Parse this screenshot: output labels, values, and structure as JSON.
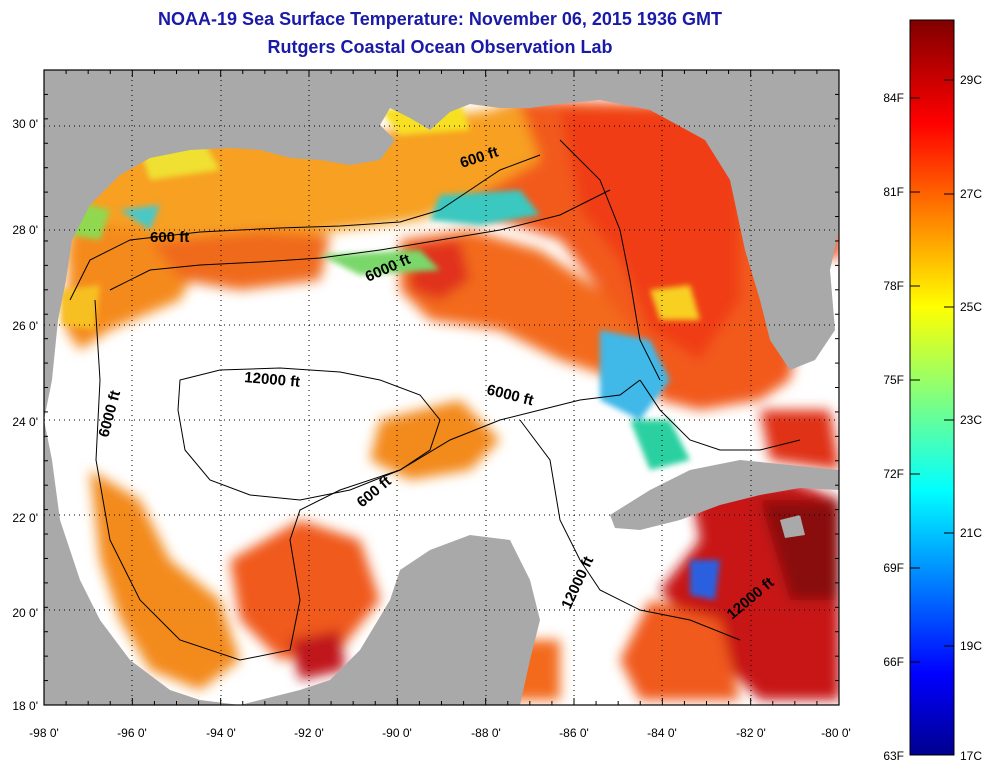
{
  "title": {
    "line1": "NOAA-19 Sea Surface Temperature:  November 06, 2015 1936 GMT",
    "line2": "Rutgers Coastal Ocean Observation Lab"
  },
  "map": {
    "lon_labels": [
      "-98 0'",
      "-96 0'",
      "-94 0'",
      "-92 0'",
      "-90 0'",
      "-88 0'",
      "-86 0'",
      "-84 0'",
      "-82 0'",
      "-80 0'"
    ],
    "lat_labels": [
      "18 0'",
      "20 0'",
      "22 0'",
      "24 0'",
      "26 0'",
      "28 0'",
      "30 0'"
    ],
    "contour_labels": [
      "600 ft",
      "600 ft",
      "6000 ft",
      "6000 ft",
      "12000 ft",
      "6000 ft",
      "600 ft",
      "12000 ft",
      "12000 ft"
    ],
    "colors": {
      "land": "#a9a9a9",
      "no_data": "#ffffff",
      "warm": "#f04a1a",
      "grid": "#000000"
    }
  },
  "colorbar": {
    "fahrenheit_labels": [
      "84F",
      "81F",
      "78F",
      "75F",
      "72F",
      "69F",
      "66F",
      "63F"
    ],
    "celsius_labels": [
      "29C",
      "27C",
      "25C",
      "23C",
      "21C",
      "19C",
      "17C"
    ]
  }
}
